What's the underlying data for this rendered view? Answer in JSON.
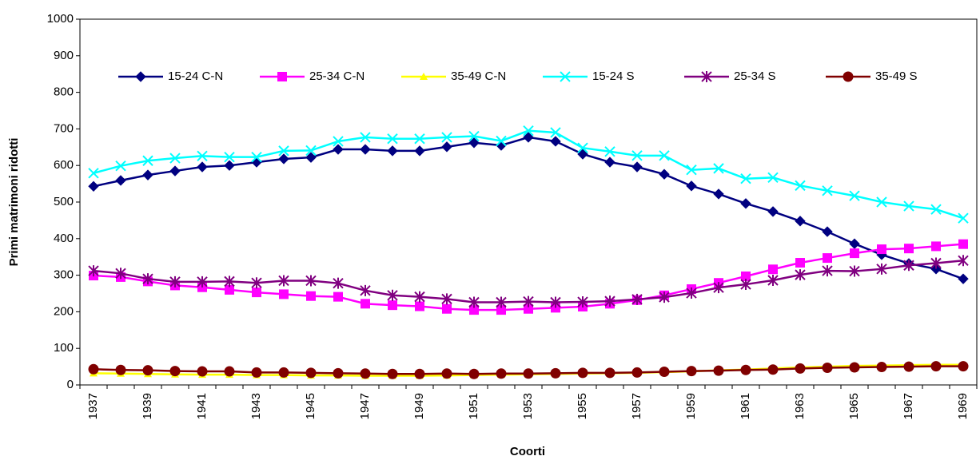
{
  "chart_data": {
    "type": "line",
    "x_label": "Coorti",
    "y_label": "Primi matrimoni ridotti",
    "categories": [
      "1937",
      null,
      "1939",
      null,
      "1941",
      null,
      "1943",
      null,
      "1945",
      null,
      "1947",
      null,
      "1949",
      null,
      "1951",
      null,
      "1953",
      null,
      "1955",
      null,
      "1957",
      null,
      "1959",
      null,
      "1961",
      null,
      "1963",
      null,
      "1965",
      null,
      "1967",
      null,
      "1969"
    ],
    "ylim": [
      0,
      1000
    ],
    "yticks": [
      0,
      100,
      200,
      300,
      400,
      500,
      600,
      700,
      800,
      900,
      1000
    ],
    "grid": false,
    "legend": "top",
    "series": [
      {
        "name": "15-24 C-N",
        "color": "#000080",
        "marker": "diamond",
        "values": [
          543,
          559,
          574,
          585,
          596,
          600,
          609,
          618,
          622,
          644,
          644,
          640,
          640,
          651,
          662,
          655,
          677,
          666,
          631,
          609,
          596,
          576,
          544,
          522,
          496,
          474,
          448,
          419,
          386,
          356,
          332,
          317,
          290
        ]
      },
      {
        "name": "25-34 C-N",
        "color": "#ff00ff",
        "marker": "square",
        "values": [
          299,
          295,
          283,
          272,
          267,
          260,
          253,
          248,
          243,
          241,
          222,
          218,
          215,
          208,
          205,
          205,
          208,
          211,
          214,
          222,
          232,
          245,
          262,
          279,
          297,
          316,
          334,
          347,
          360,
          371,
          373,
          379,
          385
        ]
      },
      {
        "name": "35-49 C-N",
        "color": "#ffff00",
        "marker": "triangle",
        "values": [
          32,
          31,
          30,
          29,
          28,
          28,
          27,
          27,
          26,
          26,
          25,
          25,
          25,
          26,
          27,
          28,
          29,
          30,
          31,
          32,
          33,
          35,
          37,
          40,
          42,
          45,
          48,
          50,
          52,
          53,
          54,
          55,
          55
        ]
      },
      {
        "name": "15-24 S",
        "color": "#00ffff",
        "marker": "x",
        "values": [
          579,
          599,
          613,
          620,
          626,
          623,
          623,
          640,
          641,
          666,
          677,
          673,
          673,
          677,
          680,
          667,
          695,
          690,
          648,
          638,
          627,
          627,
          588,
          592,
          564,
          567,
          545,
          531,
          517,
          500,
          489,
          480,
          456
        ]
      },
      {
        "name": "25-34 S",
        "color": "#800080",
        "marker": "asterisk",
        "values": [
          312,
          305,
          290,
          282,
          282,
          283,
          279,
          285,
          285,
          278,
          258,
          245,
          241,
          235,
          226,
          226,
          228,
          226,
          227,
          229,
          234,
          240,
          251,
          266,
          275,
          286,
          301,
          312,
          311,
          317,
          327,
          333,
          340
        ]
      },
      {
        "name": "35-49 S",
        "color": "#800000",
        "marker": "circle",
        "values": [
          43,
          41,
          40,
          38,
          37,
          37,
          34,
          34,
          33,
          32,
          31,
          30,
          30,
          31,
          30,
          31,
          31,
          32,
          33,
          33,
          34,
          36,
          38,
          39,
          41,
          42,
          45,
          47,
          48,
          49,
          50,
          51,
          51
        ]
      }
    ]
  }
}
